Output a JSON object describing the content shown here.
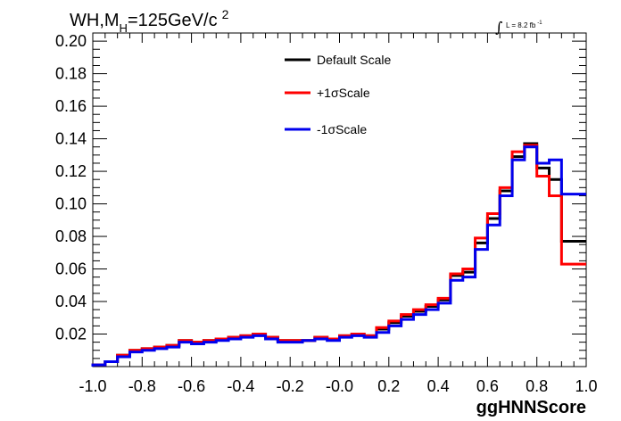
{
  "chart_data": {
    "type": "line",
    "title": "WH,M",
    "title_sub": "H",
    "title_suffix": "=125GeV/c",
    "title_sup": "2",
    "lumi_label": "L = 8.2 fb",
    "lumi_sup": "-1",
    "xlabel": "ggHNNScore",
    "ylabel": "",
    "xlim": [
      -1.0,
      1.0
    ],
    "ylim": [
      0.0,
      0.205
    ],
    "xticks": [
      "-1.0",
      "-0.8",
      "-0.6",
      "-0.4",
      "-0.2",
      "-0.0",
      "0.2",
      "0.4",
      "0.6",
      "0.8",
      "1.0"
    ],
    "yticks": [
      "0.02",
      "0.04",
      "0.06",
      "0.08",
      "0.10",
      "0.12",
      "0.14",
      "0.16",
      "0.18",
      "0.20"
    ],
    "grid": false,
    "legend_position": "top-center",
    "bin_edges": [
      -1.0,
      -0.95,
      -0.9,
      -0.85,
      -0.8,
      -0.75,
      -0.7,
      -0.65,
      -0.6,
      -0.55,
      -0.5,
      -0.45,
      -0.4,
      -0.35,
      -0.3,
      -0.25,
      -0.2,
      -0.15,
      -0.1,
      -0.05,
      0.0,
      0.05,
      0.1,
      0.15,
      0.2,
      0.25,
      0.3,
      0.35,
      0.4,
      0.45,
      0.5,
      0.55,
      0.6,
      0.65,
      0.7,
      0.75,
      0.8,
      0.85,
      0.9,
      0.95,
      1.0
    ],
    "series": [
      {
        "name": "Default Scale",
        "color": "#000000",
        "values": [
          0.001,
          0.003,
          0.007,
          0.01,
          0.011,
          0.012,
          0.013,
          0.016,
          0.015,
          0.016,
          0.017,
          0.018,
          0.019,
          0.02,
          0.018,
          0.016,
          0.016,
          0.016,
          0.018,
          0.017,
          0.019,
          0.02,
          0.019,
          0.023,
          0.027,
          0.031,
          0.034,
          0.037,
          0.041,
          0.056,
          0.058,
          0.076,
          0.091,
          0.108,
          0.129,
          0.137,
          0.122,
          0.115,
          0.077,
          0.077
        ]
      },
      {
        "name": "+1σScale",
        "color": "#ff0000",
        "values": [
          0.001,
          0.003,
          0.007,
          0.01,
          0.011,
          0.012,
          0.013,
          0.016,
          0.015,
          0.016,
          0.017,
          0.018,
          0.019,
          0.02,
          0.018,
          0.016,
          0.016,
          0.016,
          0.018,
          0.017,
          0.019,
          0.02,
          0.019,
          0.024,
          0.028,
          0.032,
          0.035,
          0.038,
          0.042,
          0.057,
          0.06,
          0.079,
          0.094,
          0.11,
          0.132,
          0.136,
          0.117,
          0.105,
          0.063,
          0.063
        ]
      },
      {
        "name": "-1σScale",
        "color": "#0000ee",
        "values": [
          0.001,
          0.003,
          0.006,
          0.009,
          0.01,
          0.011,
          0.012,
          0.015,
          0.014,
          0.015,
          0.016,
          0.017,
          0.018,
          0.019,
          0.017,
          0.015,
          0.015,
          0.016,
          0.017,
          0.016,
          0.018,
          0.019,
          0.018,
          0.021,
          0.025,
          0.029,
          0.032,
          0.035,
          0.039,
          0.053,
          0.055,
          0.072,
          0.087,
          0.105,
          0.127,
          0.135,
          0.125,
          0.127,
          0.106,
          0.106
        ]
      }
    ]
  }
}
